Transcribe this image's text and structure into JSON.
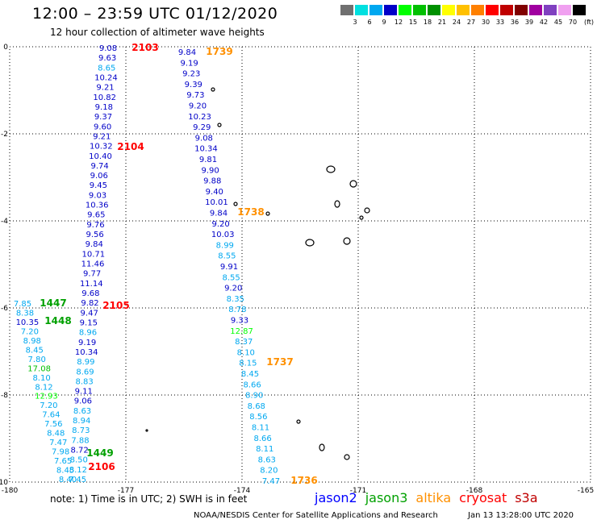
{
  "title": "12:00 – 23:59 UTC 01/12/2020",
  "subtitle": "12 hour collection of altimeter wave heights",
  "legend": {
    "unit": "(ft)",
    "colors": [
      "#707070",
      "#00e0e0",
      "#00a8f0",
      "#0000c8",
      "#00ff00",
      "#00c000",
      "#009000",
      "#ffff00",
      "#ffc000",
      "#ff8000",
      "#ff0000",
      "#c00000",
      "#800000",
      "#a000a0",
      "#8040c0",
      "#f0a0f0",
      "#000000"
    ],
    "ticks": [
      "3",
      "6",
      "9",
      "12",
      "15",
      "18",
      "21",
      "24",
      "27",
      "30",
      "33",
      "36",
      "39",
      "42",
      "45",
      "70"
    ]
  },
  "axes": {
    "x_ticks": [
      "-180",
      "-177",
      "-174",
      "-171",
      "-168",
      "-165"
    ],
    "y_ticks": [
      "0",
      "-2",
      "-4",
      "-6",
      "-8",
      "-10"
    ],
    "xlim": [
      -180,
      -165
    ],
    "ylim": [
      -10,
      0
    ]
  },
  "tracks": {
    "jason2_left": {
      "color": "#0000c8",
      "values": [
        "9.08",
        "9.63",
        "8.65",
        "10.24",
        "9.21",
        "10.82",
        "9.18",
        "9.37",
        "9.60",
        "9.21",
        "10.32",
        "10.40",
        "9.74",
        "9.06",
        "9.45",
        "9.03",
        "10.36",
        "9.65",
        "9.76",
        "9.56",
        "9.84",
        "10.71",
        "11.46",
        "9.77",
        "11.14",
        "9.68",
        "9.82",
        "9.47",
        "9.15",
        "8.96",
        "9.19",
        "10.34",
        "8.99",
        "8.69",
        "8.83",
        "9.11",
        "9.06",
        "8.63",
        "8.94",
        "8.73",
        "7.88",
        "8.72",
        "8.50",
        "8.12",
        "7.45"
      ],
      "label_colors": [
        "#0000c8",
        "#0000c8",
        "#00a8f0",
        "#0000c8",
        "#0000c8",
        "#0000c8",
        "#0000c8",
        "#0000c8",
        "#0000c8",
        "#0000c8",
        "#0000c8",
        "#0000c8",
        "#0000c8",
        "#0000c8",
        "#0000c8",
        "#0000c8",
        "#0000c8",
        "#0000c8",
        "#0000c8",
        "#0000c8",
        "#0000c8",
        "#0000c8",
        "#0000c8",
        "#0000c8",
        "#0000c8",
        "#0000c8",
        "#0000c8",
        "#0000c8",
        "#0000c8",
        "#00a8f0",
        "#0000c8",
        "#0000c8",
        "#00a8f0",
        "#00a8f0",
        "#00a8f0",
        "#0000c8",
        "#0000c8",
        "#00a8f0",
        "#00a8f0",
        "#00a8f0",
        "#00a8f0",
        "#0000c8",
        "#00a8f0",
        "#00a8f0",
        "#00a8f0"
      ]
    },
    "jason3_left": {
      "values": [
        "7.85",
        "8.38",
        "10.35",
        "7.20",
        "8.98",
        "8.45",
        "7.80",
        "17.08",
        "8.10",
        "8.12",
        "12.93",
        "7.20",
        "7.64",
        "7.56",
        "8.48",
        "7.47",
        "7.98",
        "7.65",
        "8.45",
        "8.40"
      ],
      "label_colors": [
        "#00a8f0",
        "#00a8f0",
        "#0000c8",
        "#00a8f0",
        "#00a8f0",
        "#00a8f0",
        "#00a8f0",
        "#00c000",
        "#00a8f0",
        "#00a8f0",
        "#00ff00",
        "#00a8f0",
        "#00a8f0",
        "#00a8f0",
        "#00a8f0",
        "#00a8f0",
        "#00a8f0",
        "#00a8f0",
        "#00a8f0",
        "#00a8f0"
      ]
    },
    "altika_right": {
      "values": [
        "9.84",
        "9.19",
        "9.23",
        "9.39",
        "9.73",
        "9.20",
        "10.23",
        "9.29",
        "9.08",
        "10.34",
        "9.81",
        "9.90",
        "9.88",
        "9.40",
        "10.01",
        "9.84",
        "9.20",
        "10.03",
        "8.99",
        "8.55",
        "9.91",
        "8.55",
        "9.20",
        "8.35",
        "8.78",
        "9.33",
        "12.87",
        "8.37",
        "8.10",
        "8.15",
        "8.45",
        "8.66",
        "8.90",
        "8.68",
        "8.56",
        "8.11",
        "8.66",
        "8.11",
        "8.63",
        "8.20",
        "7.47"
      ],
      "label_colors": [
        "#0000c8",
        "#0000c8",
        "#0000c8",
        "#0000c8",
        "#0000c8",
        "#0000c8",
        "#0000c8",
        "#0000c8",
        "#0000c8",
        "#0000c8",
        "#0000c8",
        "#0000c8",
        "#0000c8",
        "#0000c8",
        "#0000c8",
        "#0000c8",
        "#0000c8",
        "#0000c8",
        "#00a8f0",
        "#00a8f0",
        "#0000c8",
        "#00a8f0",
        "#0000c8",
        "#00a8f0",
        "#00a8f0",
        "#0000c8",
        "#00ff00",
        "#00a8f0",
        "#00a8f0",
        "#00a8f0",
        "#00a8f0",
        "#00a8f0",
        "#00a8f0",
        "#00a8f0",
        "#00a8f0",
        "#00a8f0",
        "#00a8f0",
        "#00a8f0",
        "#00a8f0",
        "#00a8f0",
        "#00a8f0"
      ]
    }
  },
  "time_labels": [
    {
      "text": "2103",
      "color": "#ff0000"
    },
    {
      "text": "1739",
      "color": "#ff9000"
    },
    {
      "text": "2104",
      "color": "#ff0000"
    },
    {
      "text": "1738",
      "color": "#ff9000"
    },
    {
      "text": "1447",
      "color": "#00a000"
    },
    {
      "text": "2105",
      "color": "#ff0000"
    },
    {
      "text": "1448",
      "color": "#00a000"
    },
    {
      "text": "1737",
      "color": "#ff9000"
    },
    {
      "text": "1449",
      "color": "#00a000"
    },
    {
      "text": "2106",
      "color": "#ff0000"
    },
    {
      "text": "1736",
      "color": "#ff9000"
    }
  ],
  "note": "note: 1) Time is in UTC; 2) SWH is in feet",
  "satellites": [
    {
      "name": "jason2",
      "color": "#0000ff"
    },
    {
      "name": "jason3",
      "color": "#00a000"
    },
    {
      "name": "altika",
      "color": "#ff9000"
    },
    {
      "name": "cryosat",
      "color": "#ff0000"
    },
    {
      "name": "s3a",
      "color": "#c00000"
    }
  ],
  "credit": "NOAA/NESDIS Center for Satellite Applications and Research",
  "generated": "Jan 13 13:28:00 UTC 2020"
}
